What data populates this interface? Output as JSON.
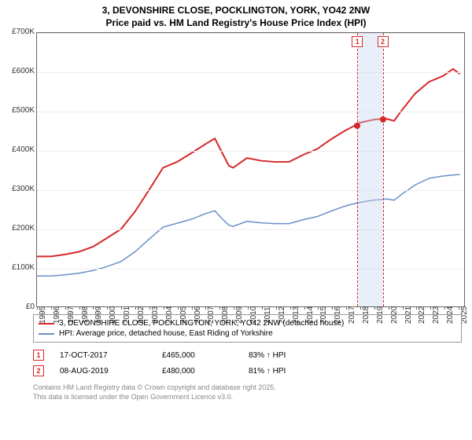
{
  "title_line1": "3, DEVONSHIRE CLOSE, POCKLINGTON, YORK, YO42 2NW",
  "title_line2": "Price paid vs. HM Land Registry's House Price Index (HPI)",
  "chart": {
    "type": "line",
    "background_color": "#ffffff",
    "grid_color": "#eeeeee",
    "axis_color": "#666666",
    "label_fontsize": 10,
    "title_fontsize": 12,
    "xlim": [
      1995,
      2025.5
    ],
    "ylim": [
      0,
      700000
    ],
    "ytick_step": 100000,
    "yticks": [
      "£0",
      "£100K",
      "£200K",
      "£300K",
      "£400K",
      "£500K",
      "£600K",
      "£700K"
    ],
    "xticks": [
      1995,
      1996,
      1997,
      1998,
      1999,
      2000,
      2001,
      2002,
      2003,
      2004,
      2005,
      2006,
      2007,
      2008,
      2009,
      2010,
      2011,
      2012,
      2013,
      2014,
      2015,
      2016,
      2017,
      2018,
      2019,
      2020,
      2021,
      2022,
      2023,
      2024,
      2025
    ],
    "series": [
      {
        "name": "3, DEVONSHIRE CLOSE, POCKLINGTON, YORK, YO42 2NW (detached house)",
        "color": "#d62728",
        "line_width": 2,
        "data": [
          [
            1995,
            128000
          ],
          [
            1996,
            128000
          ],
          [
            1997,
            133000
          ],
          [
            1998,
            140000
          ],
          [
            1999,
            153000
          ],
          [
            2000,
            175000
          ],
          [
            2001,
            198000
          ],
          [
            2002,
            243000
          ],
          [
            2003,
            298000
          ],
          [
            2004,
            355000
          ],
          [
            2005,
            370000
          ],
          [
            2006,
            392000
          ],
          [
            2007,
            415000
          ],
          [
            2007.7,
            430000
          ],
          [
            2008.2,
            395000
          ],
          [
            2008.7,
            360000
          ],
          [
            2009,
            355000
          ],
          [
            2010,
            380000
          ],
          [
            2011,
            373000
          ],
          [
            2012,
            370000
          ],
          [
            2013,
            370000
          ],
          [
            2014,
            388000
          ],
          [
            2015,
            403000
          ],
          [
            2016,
            428000
          ],
          [
            2017,
            450000
          ],
          [
            2017.8,
            465000
          ],
          [
            2018,
            470000
          ],
          [
            2019,
            478000
          ],
          [
            2019.6,
            480000
          ],
          [
            2020,
            480000
          ],
          [
            2020.5,
            475000
          ],
          [
            2021,
            500000
          ],
          [
            2022,
            545000
          ],
          [
            2023,
            575000
          ],
          [
            2024,
            590000
          ],
          [
            2024.7,
            608000
          ],
          [
            2025.2,
            595000
          ]
        ]
      },
      {
        "name": "HPI: Average price, detached house, East Riding of Yorkshire",
        "color": "#6a8fc7",
        "line_width": 1.5,
        "data": [
          [
            1995,
            78000
          ],
          [
            1996,
            78000
          ],
          [
            1997,
            81000
          ],
          [
            1998,
            85000
          ],
          [
            1999,
            92000
          ],
          [
            2000,
            102000
          ],
          [
            2001,
            115000
          ],
          [
            2002,
            140000
          ],
          [
            2003,
            172000
          ],
          [
            2004,
            203000
          ],
          [
            2005,
            213000
          ],
          [
            2006,
            223000
          ],
          [
            2007,
            237000
          ],
          [
            2007.7,
            245000
          ],
          [
            2008.2,
            225000
          ],
          [
            2008.7,
            208000
          ],
          [
            2009,
            205000
          ],
          [
            2010,
            218000
          ],
          [
            2011,
            214000
          ],
          [
            2012,
            212000
          ],
          [
            2013,
            212000
          ],
          [
            2014,
            222000
          ],
          [
            2015,
            230000
          ],
          [
            2016,
            244000
          ],
          [
            2017,
            257000
          ],
          [
            2018,
            266000
          ],
          [
            2019,
            272000
          ],
          [
            2020,
            275000
          ],
          [
            2020.5,
            272000
          ],
          [
            2021,
            286000
          ],
          [
            2022,
            311000
          ],
          [
            2023,
            328000
          ],
          [
            2024,
            334000
          ],
          [
            2025.2,
            338000
          ]
        ]
      }
    ],
    "markers": [
      {
        "n": "1",
        "year": 2017.79,
        "price": 465000,
        "color": "#d62728"
      },
      {
        "n": "2",
        "year": 2019.6,
        "price": 480000,
        "color": "#d62728"
      }
    ],
    "shade": {
      "from": 2017.79,
      "to": 2019.6,
      "color": "rgba(200,215,240,0.4)"
    },
    "vline_color": "#d62728"
  },
  "legend": {
    "items": [
      {
        "color": "#d62728",
        "label": "3, DEVONSHIRE CLOSE, POCKLINGTON, YORK, YO42 2NW (detached house)"
      },
      {
        "color": "#6a8fc7",
        "label": "HPI: Average price, detached house, East Riding of Yorkshire"
      }
    ]
  },
  "sales": [
    {
      "n": "1",
      "date": "17-OCT-2017",
      "price": "£465,000",
      "hpi": "83% ↑ HPI",
      "box_color": "#d62728"
    },
    {
      "n": "2",
      "date": "08-AUG-2019",
      "price": "£480,000",
      "hpi": "81% ↑ HPI",
      "box_color": "#d62728"
    }
  ],
  "footer1": "Contains HM Land Registry data © Crown copyright and database right 2025.",
  "footer2": "This data is licensed under the Open Government Licence v3.0."
}
